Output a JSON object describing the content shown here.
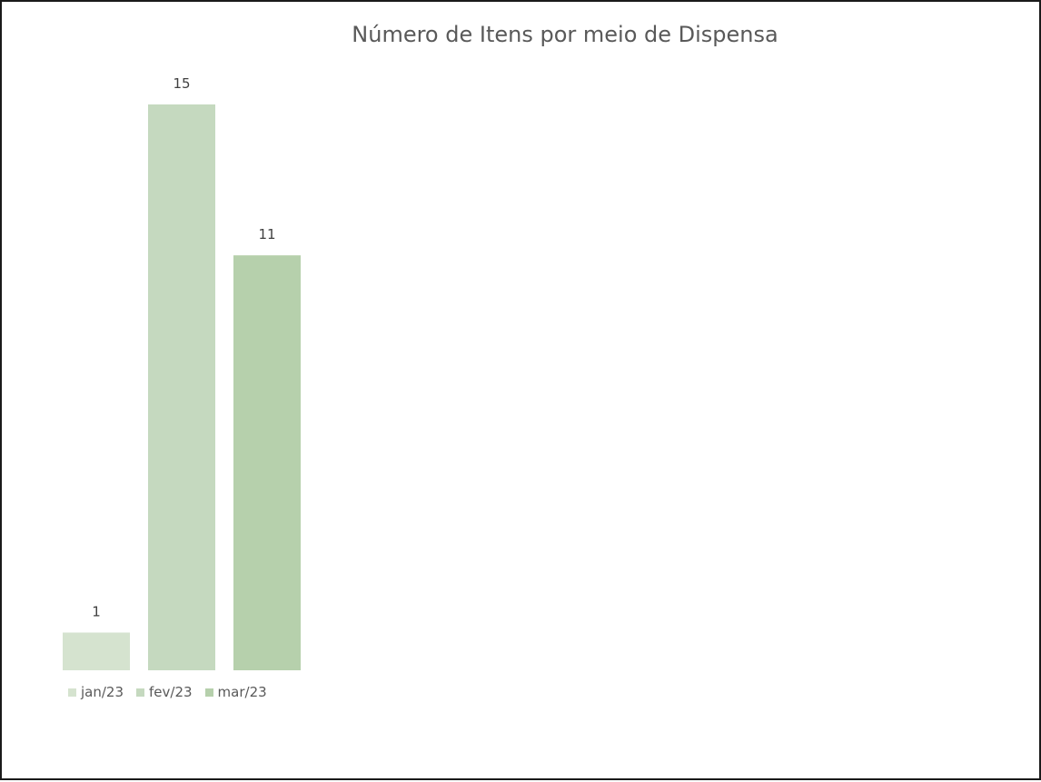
{
  "chart_data": {
    "type": "bar",
    "title": "Número de Itens por meio de Dispensa",
    "categories": [
      "jan/23",
      "fev/23",
      "mar/23"
    ],
    "values": [
      1,
      15,
      11
    ],
    "data_labels": [
      "1",
      "15",
      "11"
    ],
    "colors": [
      "#d5e3cf",
      "#c5d9bf",
      "#b6d0ac"
    ],
    "legend_position": "bottom-left",
    "grid": false,
    "ylim": [
      0,
      15
    ]
  }
}
